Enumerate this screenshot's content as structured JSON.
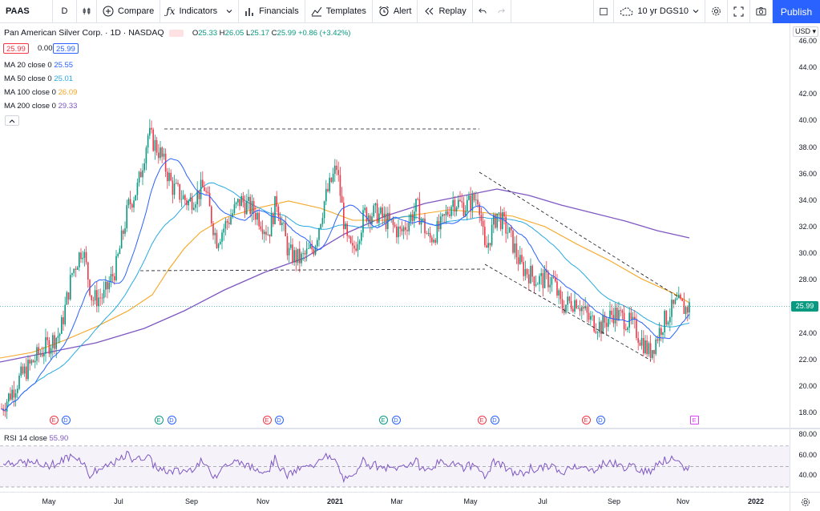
{
  "toolbar": {
    "symbol": "PAAS",
    "interval": "D",
    "compare": "Compare",
    "indicators": "Indicators",
    "financials": "Financials",
    "templates": "Templates",
    "alert": "Alert",
    "replay": "Replay",
    "compare_symbol": "10 yr DGS10",
    "publish": "Publish"
  },
  "legend": {
    "title": "Pan American Silver Corp. · 1D · NASDAQ",
    "o_label": "O",
    "o": "25.33",
    "h_label": "H",
    "h": "26.05",
    "l_label": "L",
    "l": "25.17",
    "c_label": "C",
    "c": "25.99",
    "change": "+0.86 (+3.42%)",
    "bid": "25.99",
    "spread": "0.00",
    "ask": "25.99",
    "ma": [
      {
        "label": "MA 20 close 0",
        "value": "25.55",
        "color": "#2962ff"
      },
      {
        "label": "MA 50 close 0",
        "value": "25.01",
        "color": "#26a9e0"
      },
      {
        "label": "MA 100 close 0",
        "value": "26.09",
        "color": "#f5a623"
      },
      {
        "label": "MA 200 close 0",
        "value": "29.33",
        "color": "#7e57c2"
      }
    ],
    "rsi_label": "RSI 14 close",
    "rsi_value": "55.90"
  },
  "colors": {
    "up": "#089981",
    "down": "#f23645",
    "ma20": "#2962ff",
    "ma50": "#26a9e0",
    "ma100": "#f5a623",
    "ma200": "#7e57c2",
    "rsi": "#7e57c2",
    "accent": "#2962ff"
  },
  "currency": "USD",
  "last_price": "25.99",
  "price_ticks": [
    "46.00",
    "44.00",
    "42.00",
    "40.00",
    "38.00",
    "36.00",
    "34.00",
    "32.00",
    "30.00",
    "28.00",
    "26.00",
    "24.00",
    "22.00",
    "20.00",
    "18.00"
  ],
  "rsi_ticks": [
    "80.00",
    "60.00",
    "40.00"
  ],
  "time_ticks": [
    "May",
    "Jul",
    "Sep",
    "Nov",
    "2021",
    "Mar",
    "May",
    "Jul",
    "Sep",
    "Nov",
    "2022"
  ],
  "events": [
    {
      "type": "E",
      "kind": "red"
    },
    {
      "type": "D",
      "kind": "div"
    },
    {
      "type": "E",
      "kind": "green"
    },
    {
      "type": "D",
      "kind": "div"
    },
    {
      "type": "E",
      "kind": "red"
    },
    {
      "type": "D",
      "kind": "div"
    },
    {
      "type": "E",
      "kind": "green"
    },
    {
      "type": "D",
      "kind": "div"
    },
    {
      "type": "E",
      "kind": "red"
    },
    {
      "type": "D",
      "kind": "div"
    },
    {
      "type": "E",
      "kind": "red"
    },
    {
      "type": "D",
      "kind": "div"
    },
    {
      "type": "E",
      "kind": "future"
    }
  ],
  "chart_data": {
    "type": "candlestick",
    "title": "Pan American Silver Corp. · 1D · NASDAQ",
    "ylim": [
      17,
      46.5
    ],
    "x_range": [
      "2020-04",
      "2022-01"
    ],
    "overlays": [
      "MA 20",
      "MA 50",
      "MA 100",
      "MA 200"
    ],
    "rsi_ylim": [
      25,
      85
    ],
    "rsi_bands": [
      70,
      50,
      30
    ]
  }
}
